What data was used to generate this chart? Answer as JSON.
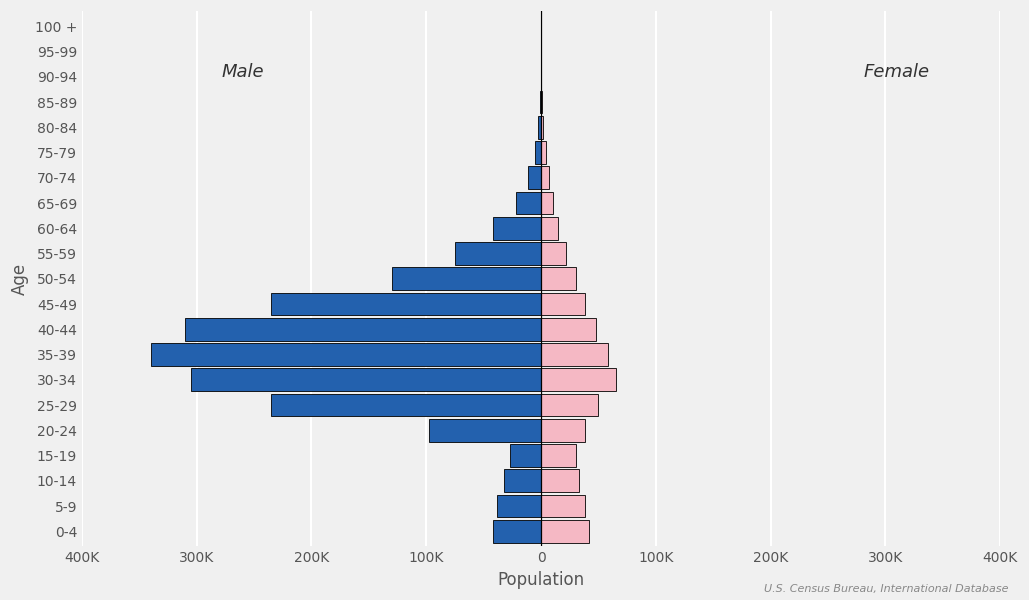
{
  "age_groups": [
    "0-4",
    "5-9",
    "10-14",
    "15-19",
    "20-24",
    "25-29",
    "30-34",
    "35-39",
    "40-44",
    "45-49",
    "50-54",
    "55-59",
    "60-64",
    "65-69",
    "70-74",
    "75-79",
    "80-84",
    "85-89",
    "90-94",
    "95-99",
    "100 +"
  ],
  "male": [
    42000,
    38000,
    32000,
    27000,
    98000,
    235000,
    305000,
    340000,
    310000,
    235000,
    130000,
    75000,
    42000,
    22000,
    11000,
    5500,
    2500,
    1000,
    350,
    80,
    15
  ],
  "female": [
    42000,
    38000,
    33000,
    30000,
    38000,
    50000,
    65000,
    58000,
    48000,
    38000,
    30000,
    22000,
    15000,
    10000,
    6500,
    4000,
    2000,
    800,
    220,
    50,
    8
  ],
  "male_color": "#2361AE",
  "female_color": "#f5b8c4",
  "bar_edge_color": "#000000",
  "bar_edge_width": 0.6,
  "background_color": "#f0f0f0",
  "grid_color": "#ffffff",
  "xlabel": "Population",
  "ylabel": "Age",
  "xlim": [
    -400000,
    400000
  ],
  "xtick_vals": [
    -400000,
    -300000,
    -200000,
    -100000,
    0,
    100000,
    200000,
    300000,
    400000
  ],
  "xtick_labels": [
    "400K",
    "300K",
    "200K",
    "100K",
    "0",
    "100K",
    "200K",
    "300K",
    "400K"
  ],
  "male_label": "Male",
  "female_label": "Female",
  "source_text": "U.S. Census Bureau, International Database",
  "axis_label_fontsize": 12,
  "tick_label_fontsize": 10,
  "annotation_fontsize": 13
}
